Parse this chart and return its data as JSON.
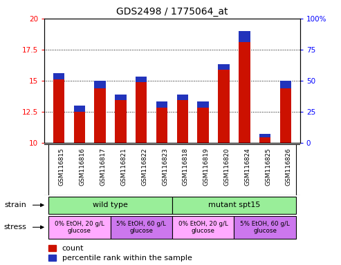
{
  "title": "GDS2498 / 1775064_at",
  "samples": [
    "GSM116815",
    "GSM116816",
    "GSM116817",
    "GSM116821",
    "GSM116822",
    "GSM116823",
    "GSM116818",
    "GSM116819",
    "GSM116820",
    "GSM116824",
    "GSM116825",
    "GSM116826"
  ],
  "count_values": [
    15.6,
    13.0,
    15.0,
    13.9,
    15.3,
    13.3,
    13.9,
    13.3,
    16.3,
    19.0,
    10.7,
    15.0
  ],
  "percentile_values": [
    0.5,
    0.5,
    0.65,
    0.45,
    0.45,
    0.5,
    0.5,
    0.5,
    0.45,
    0.9,
    0.3,
    0.65
  ],
  "ymin": 10,
  "ymax": 20,
  "yticks_left": [
    10,
    12.5,
    15,
    17.5,
    20
  ],
  "yticks_right": [
    0,
    25,
    50,
    75,
    100
  ],
  "bar_color_red": "#cc1100",
  "bar_color_blue": "#2233bb",
  "bar_width": 0.55,
  "strain_labels": [
    "wild type",
    "mutant spt15"
  ],
  "strain_color": "#99ee99",
  "stress_labels": [
    "0% EtOH, 20 g/L\nglucose",
    "5% EtOH, 60 g/L\nglucose",
    "0% EtOH, 20 g/L\nglucose",
    "5% EtOH, 60 g/L\nglucose"
  ],
  "stress_colors": [
    "#ffaaff",
    "#cc77ee",
    "#ffaaff",
    "#cc77ee"
  ],
  "legend_count": "count",
  "legend_pct": "percentile rank within the sample",
  "strain_row_label": "strain",
  "stress_row_label": "stress",
  "sample_bg_color": "#cccccc",
  "title_fontsize": 10,
  "tick_fontsize": 7.5,
  "sample_fontsize": 6.5,
  "legend_fontsize": 8,
  "row_label_fontsize": 8
}
